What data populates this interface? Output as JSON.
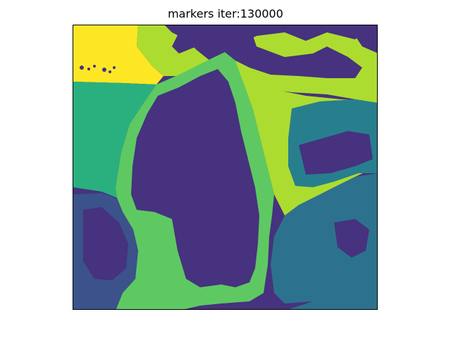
{
  "figure": {
    "title": "markers iter:130000"
  },
  "image": {
    "kind": "segmentation-marker-map",
    "colormap": "viridis",
    "colors": {
      "background_purple": "#46327e",
      "teal_green": "#2ab07f",
      "light_green": "#5ec962",
      "yellow_green": "#addc30",
      "yellow": "#fde725",
      "dark_teal": "#277f8e",
      "blue": "#3b528b",
      "mid_teal": "#2c728e"
    }
  }
}
